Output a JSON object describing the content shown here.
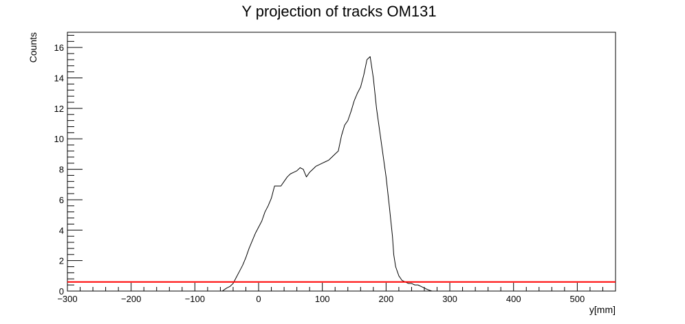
{
  "chart_data": {
    "type": "line",
    "title": "Y projection of tracks OM131",
    "xlabel": "y[mm]",
    "ylabel": "Counts",
    "xlim": [
      -300,
      560
    ],
    "ylim": [
      0,
      17
    ],
    "x_ticks": [
      -300,
      -200,
      -100,
      0,
      100,
      200,
      300,
      400,
      500
    ],
    "x_tick_labels": [
      "−300",
      "−200",
      "−100",
      "0",
      "100",
      "200",
      "300",
      "400",
      "500"
    ],
    "y_ticks": [
      0,
      2,
      4,
      6,
      8,
      10,
      12,
      14,
      16
    ],
    "y_tick_labels": [
      "0",
      "2",
      "4",
      "6",
      "8",
      "10",
      "12",
      "14",
      "16"
    ],
    "grid": false,
    "series": [
      {
        "color": "#000000",
        "x": [
          -57,
          -50,
          -45,
          -40,
          -35,
          -30,
          -25,
          -20,
          -15,
          -10,
          -5,
          0,
          5,
          10,
          15,
          20,
          25,
          30,
          35,
          40,
          45,
          50,
          55,
          60,
          65,
          70,
          75,
          80,
          85,
          90,
          95,
          100,
          105,
          110,
          115,
          120,
          125,
          130,
          135,
          140,
          145,
          150,
          155,
          160,
          165,
          170,
          175,
          180,
          185,
          190,
          195,
          200,
          205,
          210,
          212,
          215,
          220,
          225,
          230,
          235,
          240,
          245,
          250,
          255,
          260,
          265,
          268,
          272,
          276,
          280,
          285,
          290,
          295,
          300,
          305,
          310,
          315,
          320,
          325,
          330
        ],
        "y": [
          0.0,
          0.2,
          0.3,
          0.5,
          0.9,
          1.3,
          1.7,
          2.2,
          2.8,
          3.3,
          3.8,
          4.2,
          4.6,
          5.2,
          5.6,
          6.1,
          6.9,
          6.9,
          6.9,
          7.2,
          7.5,
          7.7,
          7.8,
          7.9,
          8.1,
          8.0,
          7.5,
          7.8,
          8.0,
          8.2,
          8.3,
          8.4,
          8.5,
          8.6,
          8.8,
          9.0,
          9.2,
          10.2,
          10.9,
          11.2,
          11.8,
          12.5,
          13.0,
          13.4,
          14.2,
          15.2,
          15.4,
          14.0,
          12.0,
          10.5,
          9.0,
          7.5,
          5.6,
          3.6,
          2.4,
          1.6,
          1.0,
          0.7,
          0.6,
          0.5,
          0.5,
          0.4,
          0.4,
          0.3,
          0.2,
          0.1,
          0.05,
          0.0,
          0.0,
          0.0,
          0.0,
          0.0,
          0.0,
          0.0,
          0.0,
          0.0,
          0.0,
          0.0,
          0.0,
          0.0
        ]
      },
      {
        "color": "#ff0000",
        "x": [
          -300,
          560
        ],
        "y": [
          0.6,
          0.6
        ]
      }
    ]
  }
}
